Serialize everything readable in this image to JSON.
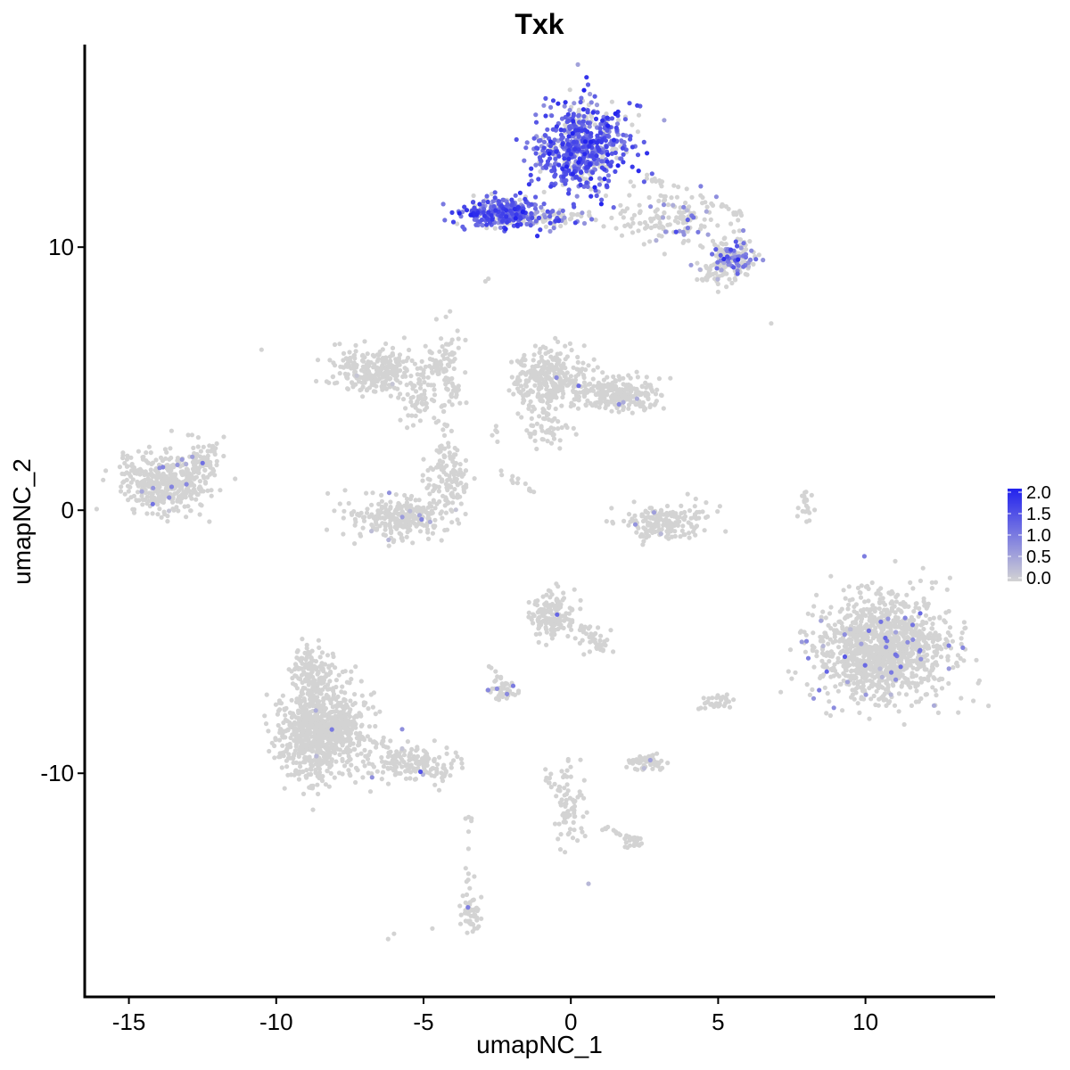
{
  "chart_data": {
    "type": "scatter",
    "title": "Txk",
    "xlabel": "umapNC_1",
    "ylabel": "umapNC_2",
    "xlim": [
      -16.5,
      14.4
    ],
    "ylim": [
      -18.5,
      17.7
    ],
    "xticks": [
      -15,
      -10,
      -5,
      0,
      5,
      10
    ],
    "xtick_labels": [
      "-15",
      "-10",
      "-5",
      "0",
      "5",
      "10"
    ],
    "yticks": [
      10,
      0,
      -10
    ],
    "ytick_labels": [
      "10",
      "0",
      "-10"
    ],
    "grid": false,
    "legend": {
      "placement": "right",
      "values": [
        2.0,
        1.5,
        1.0,
        0.5,
        0.0
      ],
      "labels": [
        "2.0",
        "1.5",
        "1.0",
        "0.5",
        "0.0"
      ],
      "low_color": "#d3d3d3",
      "high_color": "#2222ee"
    },
    "point_color_low": "#d3d3d3",
    "point_color_high": "#2222ee",
    "clusters": [
      {
        "cx": 0.4,
        "cy": 13.8,
        "sx": 1.05,
        "sy": 1.1,
        "n": 650,
        "expr_frac": 0.75,
        "expr_mean": 1.25
      },
      {
        "cx": -2.3,
        "cy": 11.3,
        "sx": 0.9,
        "sy": 0.35,
        "n": 300,
        "expr_frac": 0.8,
        "expr_mean": 1.25
      },
      {
        "cx": -0.5,
        "cy": 11.1,
        "sx": 0.8,
        "sy": 0.2,
        "n": 70,
        "expr_frac": 0.3,
        "expr_mean": 0.9
      },
      {
        "cx": 3.5,
        "cy": 11.0,
        "sx": 1.2,
        "sy": 0.7,
        "n": 140,
        "expr_frac": 0.2,
        "expr_mean": 0.9
      },
      {
        "cx": 5.6,
        "cy": 9.7,
        "sx": 0.5,
        "sy": 0.45,
        "n": 120,
        "expr_frac": 0.5,
        "expr_mean": 1.0
      },
      {
        "cx": 5.0,
        "cy": 9.2,
        "sx": 0.5,
        "sy": 0.5,
        "n": 60,
        "expr_frac": 0.1,
        "expr_mean": 0.8
      },
      {
        "cx": -13.8,
        "cy": 1.0,
        "sx": 0.9,
        "sy": 0.75,
        "n": 420,
        "expr_frac": 0.02,
        "expr_mean": 0.6
      },
      {
        "cx": -12.5,
        "cy": 1.8,
        "sx": 0.4,
        "sy": 0.5,
        "n": 60,
        "expr_frac": 0.02,
        "expr_mean": 0.6
      },
      {
        "cx": -6.5,
        "cy": 5.3,
        "sx": 1.0,
        "sy": 0.6,
        "n": 260,
        "expr_frac": 0.01,
        "expr_mean": 0.6
      },
      {
        "cx": -5.0,
        "cy": 4.2,
        "sx": 0.5,
        "sy": 0.6,
        "n": 70,
        "expr_frac": 0.0,
        "expr_mean": 0.5
      },
      {
        "cx": -4.2,
        "cy": 5.8,
        "sx": 0.3,
        "sy": 1.0,
        "n": 50,
        "expr_frac": 0.0,
        "expr_mean": 0.5
      },
      {
        "cx": -5.8,
        "cy": -0.3,
        "sx": 1.2,
        "sy": 0.5,
        "n": 260,
        "expr_frac": 0.02,
        "expr_mean": 0.5
      },
      {
        "cx": -4.2,
        "cy": 1.2,
        "sx": 0.5,
        "sy": 0.7,
        "n": 110,
        "expr_frac": 0.01,
        "expr_mean": 0.5
      },
      {
        "cx": -0.7,
        "cy": 5.0,
        "sx": 0.8,
        "sy": 0.7,
        "n": 300,
        "expr_frac": 0.01,
        "expr_mean": 0.6
      },
      {
        "cx": 1.5,
        "cy": 4.4,
        "sx": 1.0,
        "sy": 0.4,
        "n": 250,
        "expr_frac": 0.01,
        "expr_mean": 0.6
      },
      {
        "cx": -0.8,
        "cy": 3.2,
        "sx": 0.5,
        "sy": 0.6,
        "n": 60,
        "expr_frac": 0.0,
        "expr_mean": 0.5
      },
      {
        "cx": 3.2,
        "cy": -0.5,
        "sx": 1.0,
        "sy": 0.5,
        "n": 180,
        "expr_frac": 0.01,
        "expr_mean": 0.6
      },
      {
        "cx": 10.6,
        "cy": -5.3,
        "sx": 1.5,
        "sy": 1.25,
        "n": 1250,
        "expr_frac": 0.025,
        "expr_mean": 0.8
      },
      {
        "cx": -0.6,
        "cy": -4.0,
        "sx": 0.5,
        "sy": 0.55,
        "n": 150,
        "expr_frac": 0.01,
        "expr_mean": 1.0
      },
      {
        "cx": 0.8,
        "cy": -4.9,
        "sx": 0.4,
        "sy": 0.4,
        "n": 30,
        "expr_frac": 0.0,
        "expr_mean": 0.5
      },
      {
        "cx": -8.5,
        "cy": -8.4,
        "sx": 1.0,
        "sy": 1.2,
        "n": 850,
        "expr_frac": 0.004,
        "expr_mean": 0.6
      },
      {
        "cx": -8.8,
        "cy": -6.2,
        "sx": 0.5,
        "sy": 0.7,
        "n": 140,
        "expr_frac": 0.0,
        "expr_mean": 0.5
      },
      {
        "cx": -5.3,
        "cy": -9.6,
        "sx": 1.0,
        "sy": 0.45,
        "n": 150,
        "expr_frac": 0.01,
        "expr_mean": 0.6
      },
      {
        "cx": -2.2,
        "cy": -6.9,
        "sx": 0.35,
        "sy": 0.25,
        "n": 40,
        "expr_frac": 0.05,
        "expr_mean": 0.8
      },
      {
        "cx": 2.5,
        "cy": -9.6,
        "sx": 0.45,
        "sy": 0.2,
        "n": 60,
        "expr_frac": 0.05,
        "expr_mean": 0.7
      },
      {
        "cx": 0.0,
        "cy": -11.3,
        "sx": 0.35,
        "sy": 0.9,
        "n": 70,
        "expr_frac": 0.02,
        "expr_mean": 0.7
      },
      {
        "cx": 2.1,
        "cy": -12.6,
        "sx": 0.25,
        "sy": 0.2,
        "n": 30,
        "expr_frac": 0.0,
        "expr_mean": 0.5
      },
      {
        "cx": -3.4,
        "cy": -15.3,
        "sx": 0.25,
        "sy": 0.55,
        "n": 50,
        "expr_frac": 0.04,
        "expr_mean": 0.9
      },
      {
        "cx": 5.0,
        "cy": -7.3,
        "sx": 0.3,
        "sy": 0.2,
        "n": 20,
        "expr_frac": 0.0,
        "expr_mean": 0.5
      },
      {
        "cx": 8.0,
        "cy": 0.2,
        "sx": 0.15,
        "sy": 0.5,
        "n": 20,
        "expr_frac": 0.0,
        "expr_mean": 0.5
      }
    ],
    "paths": [
      {
        "x0": -5.0,
        "y0": 6.2,
        "x1": -3.5,
        "y1": 3.8,
        "n": 35
      },
      {
        "x0": -4.2,
        "y0": 3.2,
        "x1": -4.5,
        "y1": 1.6,
        "n": 20
      },
      {
        "x0": -11.8,
        "y0": 2.7,
        "x1": -12.5,
        "y1": 1.8,
        "n": 10
      },
      {
        "x0": -2.6,
        "y0": 1.6,
        "x1": -1.2,
        "y1": 0.7,
        "n": 12
      },
      {
        "x0": -2.5,
        "y0": 3.2,
        "x1": -2.5,
        "y1": 2.5,
        "n": 5
      },
      {
        "x0": -8.2,
        "y0": -8.0,
        "x1": -3.9,
        "y1": -10.3,
        "n": 40
      },
      {
        "x0": -3.6,
        "y0": -11.7,
        "x1": -3.4,
        "y1": -14.2,
        "n": 10
      },
      {
        "x0": -1.0,
        "y0": -9.4,
        "x1": -0.1,
        "y1": -11.8,
        "n": 15
      },
      {
        "x0": 1.0,
        "y0": -12.0,
        "x1": 2.0,
        "y1": -12.5,
        "n": 12
      },
      {
        "x0": -2.8,
        "y0": -6.0,
        "x1": -2.2,
        "y1": -6.6,
        "n": 8
      },
      {
        "x0": 0.2,
        "y0": -4.3,
        "x1": 1.2,
        "y1": -5.4,
        "n": 20
      },
      {
        "x0": 4.3,
        "y0": -7.6,
        "x1": 5.3,
        "y1": -7.2,
        "n": 12
      },
      {
        "x0": 2.4,
        "y0": 12.8,
        "x1": 5.8,
        "y1": 11.2,
        "n": 30
      }
    ],
    "singles": [
      {
        "x": -10.5,
        "y": 6.1,
        "v": 0
      },
      {
        "x": -2.8,
        "y": 8.8,
        "v": 0
      },
      {
        "x": -2.9,
        "y": 8.7,
        "v": 0
      },
      {
        "x": 6.8,
        "y": 7.1,
        "v": 0
      },
      {
        "x": 5.0,
        "y": 8.3,
        "v": 0
      },
      {
        "x": -6.0,
        "y": -16.1,
        "v": 0
      },
      {
        "x": -6.2,
        "y": -16.3,
        "v": 0
      },
      {
        "x": -4.7,
        "y": -15.9,
        "v": 0
      },
      {
        "x": 0.6,
        "y": -14.2,
        "v": 0.3
      },
      {
        "x": -0.2,
        "y": -13.0,
        "v": 0
      },
      {
        "x": 0.7,
        "y": 15.5,
        "v": 0.9
      },
      {
        "x": 1.6,
        "y": 13.1,
        "v": 2.0
      },
      {
        "x": 2.3,
        "y": 12.9,
        "v": 1.9
      }
    ]
  }
}
